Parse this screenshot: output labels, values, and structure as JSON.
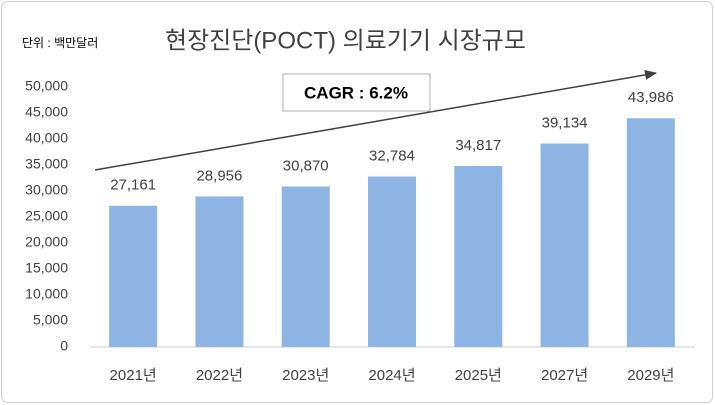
{
  "chart_data": {
    "type": "bar",
    "title": "현장진단(POCT) 의료기기 시장규모",
    "subtitle": "단위 : 백만달러",
    "annotation": "CAGR : 6.2%",
    "categories": [
      "2021년",
      "2022년",
      "2023년",
      "2024년",
      "2025년",
      "2027년",
      "2029년"
    ],
    "values": [
      27161,
      28956,
      30870,
      32784,
      34817,
      39134,
      43986
    ],
    "value_labels": [
      "27,161",
      "28,956",
      "30,870",
      "32,784",
      "34,817",
      "39,134",
      "43,986"
    ],
    "color": "#8db4e2",
    "ylim": [
      0,
      50000
    ],
    "yticks": [
      0,
      {
        "value": 5000,
        "label": "5,000"
      },
      {
        "value": 10000,
        "label": "10,000"
      },
      {
        "value": 15000,
        "label": "15,000"
      },
      {
        "value": 20000,
        "label": "20,000"
      },
      {
        "value": 25000,
        "label": "25,000"
      },
      {
        "value": 30000,
        "label": "30,000"
      },
      {
        "value": 35000,
        "label": "35,000"
      },
      {
        "value": 40000,
        "label": "40,000"
      },
      {
        "value": 45000,
        "label": "45,000"
      },
      {
        "value": 50000,
        "label": "50,000"
      }
    ],
    "grid": false
  }
}
